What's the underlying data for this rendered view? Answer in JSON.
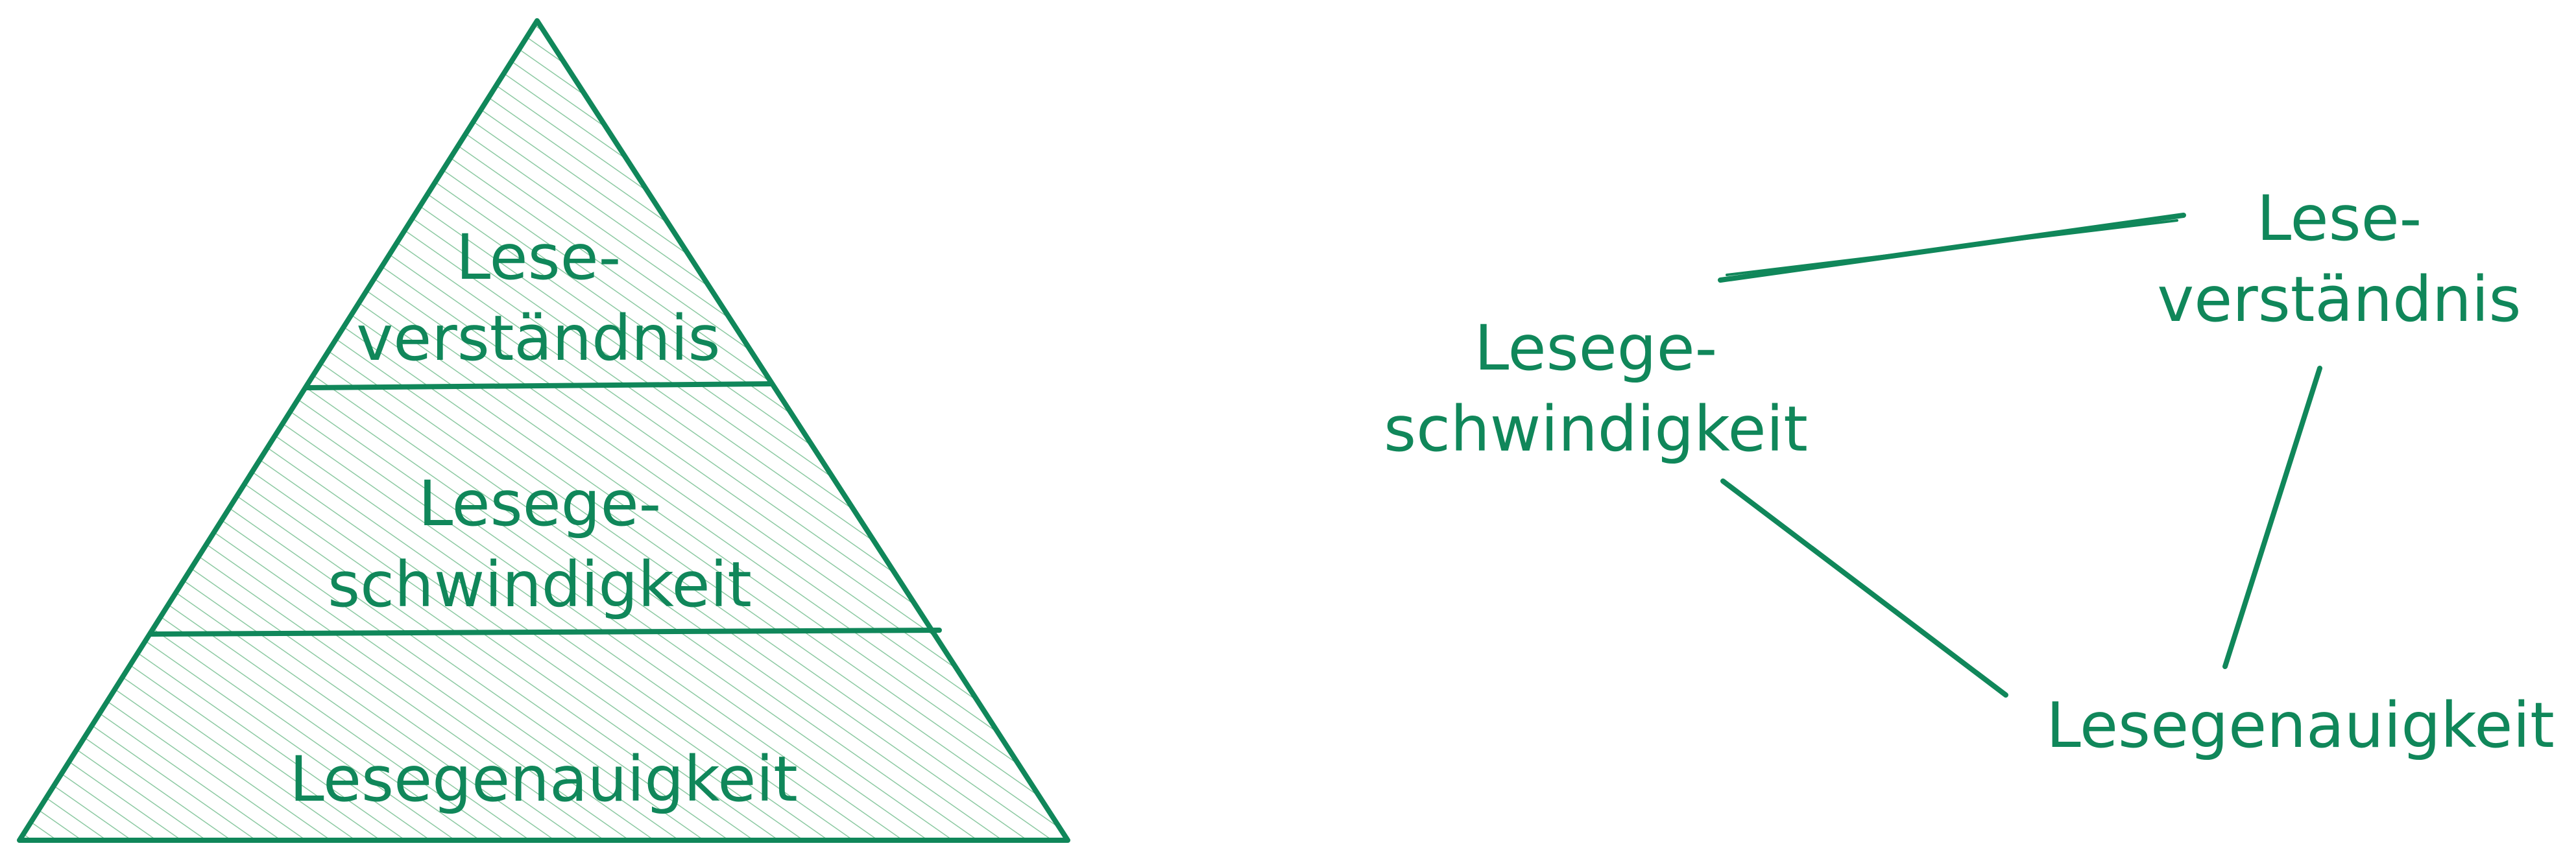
{
  "colors": {
    "stroke": "#10875a",
    "hatch": "#8cc9a2",
    "text": "#10875a",
    "background": "#ffffff"
  },
  "pyramid": {
    "levels": [
      {
        "lines": [
          "Lese-",
          "verständnis"
        ]
      },
      {
        "lines": [
          "Lesege-",
          "schwindigkeit"
        ]
      },
      {
        "lines": [
          "Lesegenauigkeit"
        ]
      }
    ]
  },
  "triangle": {
    "nodes": [
      {
        "lines": [
          "Lesege-",
          "schwindigkeit"
        ]
      },
      {
        "lines": [
          "Lese-",
          "verständnis"
        ]
      },
      {
        "lines": [
          "Lesegenauigkeit"
        ]
      }
    ]
  }
}
